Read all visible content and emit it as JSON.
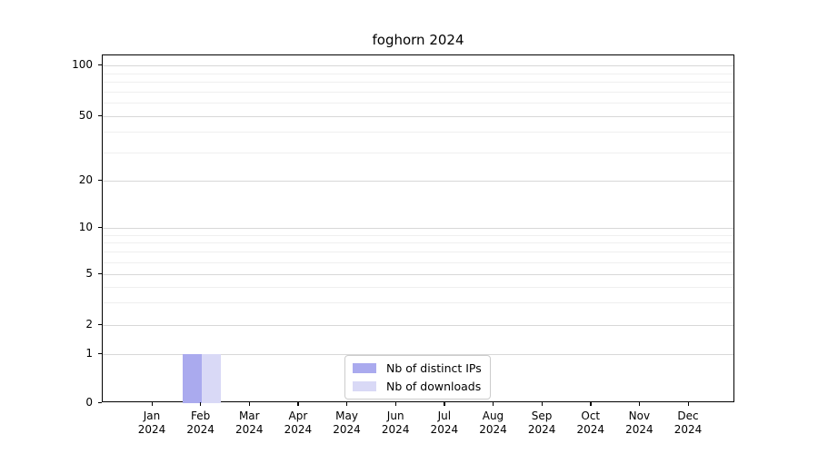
{
  "chart_data": {
    "type": "bar",
    "title": "foghorn 2024",
    "x": [
      "Jan 2024",
      "Feb 2024",
      "Mar 2024",
      "Apr 2024",
      "May 2024",
      "Jun 2024",
      "Jul 2024",
      "Aug 2024",
      "Sep 2024",
      "Oct 2024",
      "Nov 2024",
      "Dec 2024"
    ],
    "x_tick_line1": [
      "Jan",
      "Feb",
      "Mar",
      "Apr",
      "May",
      "Jun",
      "Jul",
      "Aug",
      "Sep",
      "Oct",
      "Nov",
      "Dec"
    ],
    "x_tick_line2": "2024",
    "series": [
      {
        "name": "Nb of distinct IPs",
        "color": "#aaaaee",
        "values": [
          0,
          1,
          0,
          0,
          0,
          0,
          0,
          0,
          0,
          0,
          0,
          0
        ]
      },
      {
        "name": "Nb of downloads",
        "color": "#d9d9f6",
        "values": [
          0,
          1,
          0,
          0,
          0,
          0,
          0,
          0,
          0,
          0,
          0,
          0
        ]
      }
    ],
    "yscale": "symlog",
    "ylim": [
      0,
      120
    ],
    "yticks": [
      0,
      1,
      2,
      5,
      10,
      20,
      50,
      100
    ],
    "y_minor_ticks": [
      3,
      4,
      6,
      7,
      8,
      9,
      30,
      40,
      60,
      70,
      80,
      90
    ],
    "grid": "horizontal",
    "legend_position": "lower center"
  },
  "colors": {
    "bar_distinct_ips": "#aaaaee",
    "bar_downloads": "#d9d9f6",
    "grid_major": "#d8d8d8",
    "grid_minor": "#efefef",
    "axis_line": "#000000",
    "legend_border": "#cccccc",
    "background": "#ffffff"
  }
}
